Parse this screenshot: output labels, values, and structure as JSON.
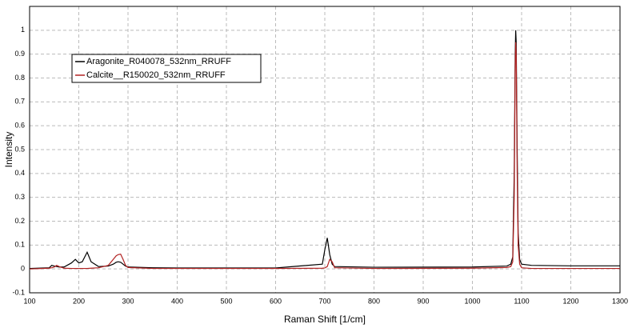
{
  "chart_data": {
    "type": "line",
    "xlabel": "Raman Shift [1/cm]",
    "ylabel": "Intensity",
    "x": [
      100,
      140,
      145,
      150,
      155,
      160,
      170,
      185,
      193,
      200,
      207,
      212,
      217,
      225,
      240,
      260,
      270,
      276,
      280,
      285,
      290,
      295,
      300,
      350,
      400,
      600,
      695,
      700,
      705,
      710,
      715,
      720,
      800,
      1000,
      1070,
      1078,
      1082,
      1085,
      1087,
      1088,
      1089,
      1091,
      1093,
      1096,
      1100,
      1120,
      1200,
      1300
    ],
    "series": [
      {
        "name": "Aragonite_R040078_532nm_RRUFF",
        "color": "#000000",
        "values": [
          0.002,
          0.005,
          0.015,
          0.012,
          0.01,
          0.008,
          0.008,
          0.025,
          0.04,
          0.025,
          0.03,
          0.05,
          0.07,
          0.03,
          0.01,
          0.012,
          0.02,
          0.028,
          0.03,
          0.028,
          0.02,
          0.012,
          0.008,
          0.005,
          0.004,
          0.004,
          0.02,
          0.08,
          0.13,
          0.06,
          0.02,
          0.01,
          0.007,
          0.008,
          0.012,
          0.02,
          0.05,
          0.4,
          0.9,
          1.0,
          0.95,
          0.5,
          0.15,
          0.04,
          0.02,
          0.015,
          0.013,
          0.013
        ]
      },
      {
        "name": "Calcite__R150020_532nm_RRUFF",
        "color": "#b22222",
        "values": [
          0,
          0.003,
          0.005,
          0.008,
          0.015,
          0.01,
          0.003,
          0.002,
          0.002,
          0.002,
          0.002,
          0.002,
          0.002,
          0.003,
          0.005,
          0.015,
          0.04,
          0.055,
          0.06,
          0.062,
          0.04,
          0.015,
          0.006,
          0.002,
          0.002,
          0.002,
          0.003,
          0.004,
          0.01,
          0.04,
          0.03,
          0.005,
          0.002,
          0.003,
          0.006,
          0.01,
          0.03,
          0.3,
          0.85,
          0.95,
          0.9,
          0.4,
          0.1,
          0.02,
          0.005,
          0.002,
          0.002,
          0.002
        ]
      }
    ],
    "xlim": [
      100,
      1300
    ],
    "xticks": [
      100,
      200,
      300,
      400,
      500,
      600,
      700,
      800,
      900,
      1000,
      1100,
      1200,
      1300
    ],
    "ylim": [
      -0.1,
      1.1
    ],
    "yticks": [
      -0.1,
      0,
      0.1,
      0.2,
      0.3,
      0.4,
      0.5,
      0.6,
      0.7,
      0.8,
      0.9,
      1
    ],
    "grid": true,
    "legend": "upper-left"
  }
}
